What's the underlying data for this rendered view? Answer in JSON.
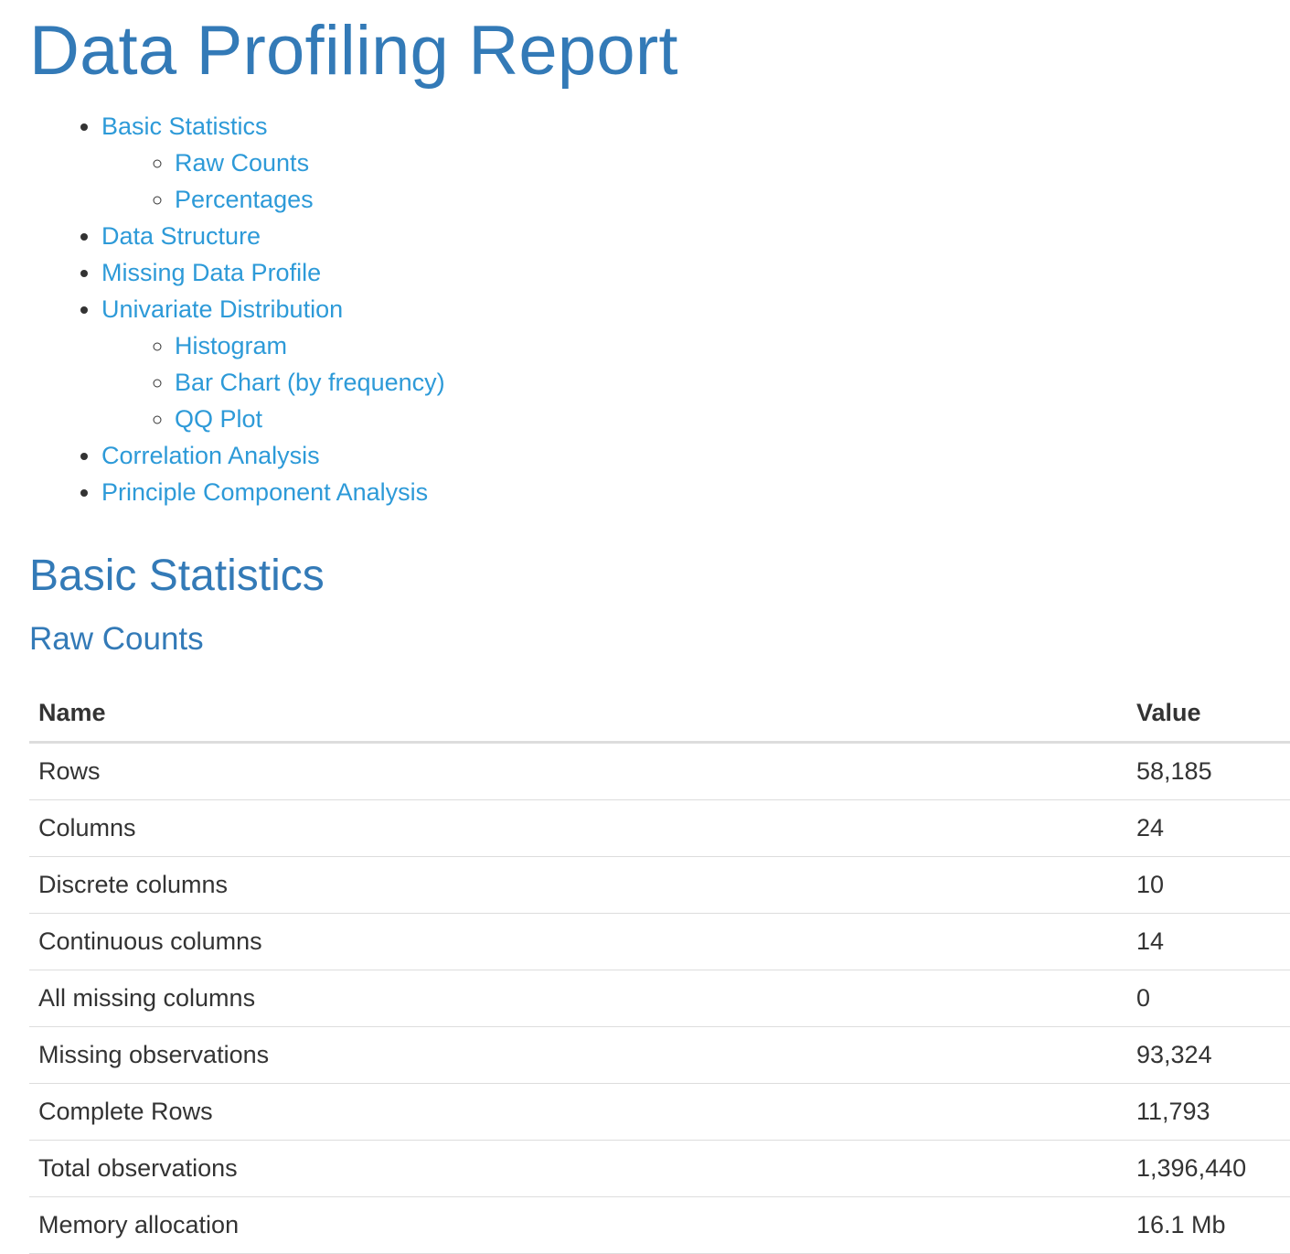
{
  "report": {
    "title": "Data Profiling Report"
  },
  "toc": {
    "basic_statistics": "Basic Statistics",
    "raw_counts": "Raw Counts",
    "percentages": "Percentages",
    "data_structure": "Data Structure",
    "missing_data_profile": "Missing Data Profile",
    "univariate_distribution": "Univariate Distribution",
    "histogram": "Histogram",
    "bar_chart": "Bar Chart (by frequency)",
    "qq_plot": "QQ Plot",
    "correlation_analysis": "Correlation Analysis",
    "pca": "Principle Component Analysis"
  },
  "section": {
    "title": "Basic Statistics",
    "subsection_title": "Raw Counts"
  },
  "table": {
    "headers": {
      "name": "Name",
      "value": "Value"
    },
    "rows": [
      {
        "name": "Rows",
        "value": "58,185"
      },
      {
        "name": "Columns",
        "value": "24"
      },
      {
        "name": "Discrete columns",
        "value": "10"
      },
      {
        "name": "Continuous columns",
        "value": "14"
      },
      {
        "name": "All missing columns",
        "value": "0"
      },
      {
        "name": "Missing observations",
        "value": "93,324"
      },
      {
        "name": "Complete Rows",
        "value": "11,793"
      },
      {
        "name": "Total observations",
        "value": "1,396,440"
      },
      {
        "name": "Memory allocation",
        "value": "16.1 Mb"
      }
    ]
  },
  "colors": {
    "heading": "#337ab7",
    "link": "#2d9ad8",
    "text": "#333333",
    "border": "#dddddd"
  }
}
